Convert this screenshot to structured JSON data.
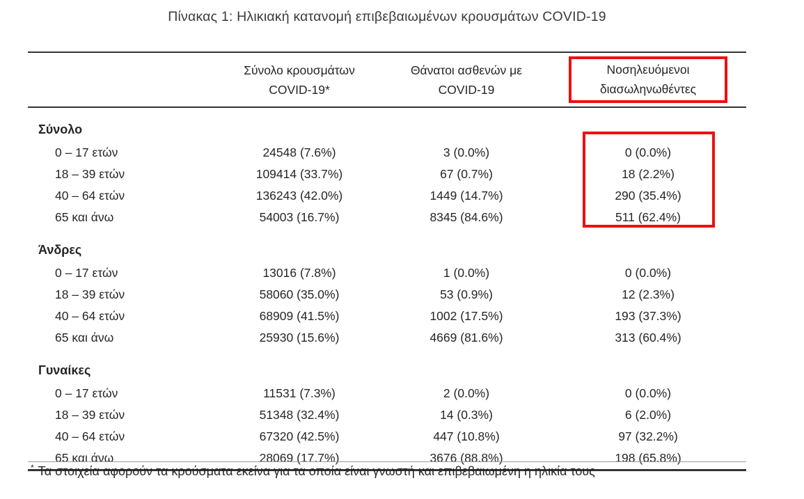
{
  "title": "Πίνακας 1: Ηλικιακή κατανομή επιβεβαιωμένων κρουσμάτων COVID-19",
  "table": {
    "header": {
      "cases": [
        "Σύνολο κρουσμάτων",
        "COVID-19*"
      ],
      "deaths": [
        "Θάνατοι ασθενών με",
        "COVID-19"
      ],
      "intubated": [
        "Νοσηλευόμενοι",
        "διασωληνωθέντες"
      ]
    },
    "sections": [
      {
        "label": "Σύνολο",
        "rows": [
          {
            "age": "0 – 17 ετών",
            "cases": "24548 (7.6%)",
            "deaths": "3 (0.0%)",
            "intubated": "0 (0.0%)"
          },
          {
            "age": "18 – 39 ετών",
            "cases": "109414 (33.7%)",
            "deaths": "67 (0.7%)",
            "intubated": "18 (2.2%)"
          },
          {
            "age": "40 – 64 ετών",
            "cases": "136243 (42.0%)",
            "deaths": "1449 (14.7%)",
            "intubated": "290 (35.4%)"
          },
          {
            "age": "65 και άνω",
            "cases": "54003 (16.7%)",
            "deaths": "8345 (84.6%)",
            "intubated": "511 (62.4%)"
          }
        ]
      },
      {
        "label": "Άνδρες",
        "rows": [
          {
            "age": "0 – 17 ετών",
            "cases": "13016 (7.8%)",
            "deaths": "1 (0.0%)",
            "intubated": "0 (0.0%)"
          },
          {
            "age": "18 – 39 ετών",
            "cases": "58060 (35.0%)",
            "deaths": "53 (0.9%)",
            "intubated": "12 (2.3%)"
          },
          {
            "age": "40 – 64 ετών",
            "cases": "68909 (41.5%)",
            "deaths": "1002 (17.5%)",
            "intubated": "193 (37.3%)"
          },
          {
            "age": "65 και άνω",
            "cases": "25930 (15.6%)",
            "deaths": "4669 (81.6%)",
            "intubated": "313 (60.4%)"
          }
        ]
      },
      {
        "label": "Γυναίκες",
        "rows": [
          {
            "age": "0 – 17 ετών",
            "cases": "11531 (7.3%)",
            "deaths": "2 (0.0%)",
            "intubated": "0 (0.0%)"
          },
          {
            "age": "18 – 39 ετών",
            "cases": "51348 (32.4%)",
            "deaths": "14 (0.3%)",
            "intubated": "6 (2.0%)"
          },
          {
            "age": "40 – 64 ετών",
            "cases": "67320 (42.5%)",
            "deaths": "447 (10.8%)",
            "intubated": "97 (32.2%)"
          },
          {
            "age": "65 και άνω",
            "cases": "28069 (17.7%)",
            "deaths": "3676 (88.8%)",
            "intubated": "198 (65.8%)"
          }
        ]
      }
    ]
  },
  "footnote": {
    "marker": "*",
    "text": "Τα στοιχεία αφορούν τα κρούσματα εκείνα για τα οποία είναι γνωστή και επιβεβαιωμένη η ηλικία τους"
  },
  "colors": {
    "highlight_red": "#ee1010",
    "text": "#262626",
    "rule": "#333333"
  }
}
